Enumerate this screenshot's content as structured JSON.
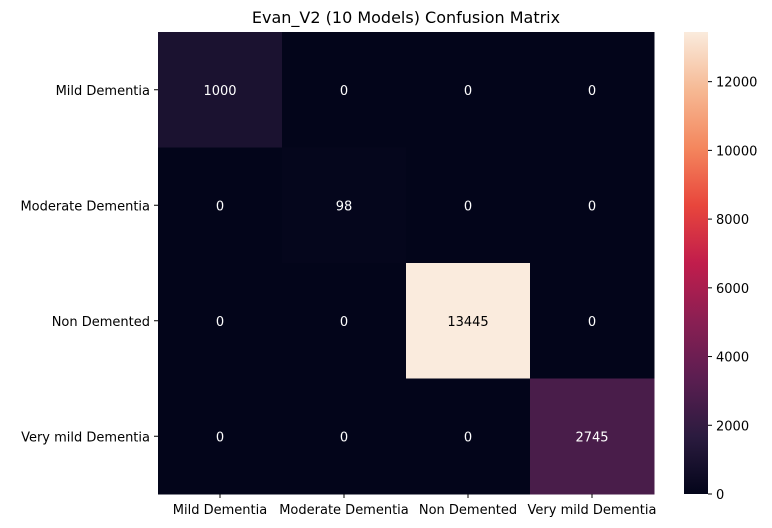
{
  "chart_data": {
    "type": "heatmap",
    "title": "Evan_V2 (10 Models) Confusion Matrix",
    "xlabel": "",
    "ylabel": "",
    "row_labels": [
      "Mild Dementia",
      "Moderate Dementia",
      "Non Demented",
      "Very mild Dementia"
    ],
    "col_labels": [
      "Mild Dementia",
      "Moderate Dementia",
      "Non Demented",
      "Very mild Dementia"
    ],
    "values": [
      [
        1000,
        0,
        0,
        0
      ],
      [
        0,
        98,
        0,
        0
      ],
      [
        0,
        0,
        13445,
        0
      ],
      [
        0,
        0,
        0,
        2745
      ]
    ],
    "colorbar": {
      "range": [
        0,
        13445
      ],
      "ticks": [
        0,
        2000,
        4000,
        6000,
        8000,
        10000,
        12000
      ]
    },
    "colormap": "rocket",
    "colormap_stops": [
      "#03051a",
      "#2b1b3f",
      "#5b1e51",
      "#8a1f53",
      "#c11d4c",
      "#e8463c",
      "#f4875e",
      "#f6b994",
      "#faebdd"
    ]
  }
}
